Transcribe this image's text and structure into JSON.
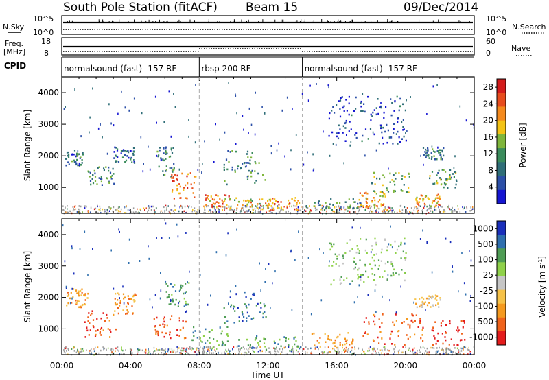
{
  "header": {
    "station": "South Pole Station (fitACF)",
    "beam": "Beam 15",
    "date": "09/Dec/2014"
  },
  "labels": {
    "nsky": "N.Sky",
    "freq": "Freq.",
    "freq_unit": "[MHz]",
    "cpid": "CPID",
    "nsearch": "N.Search",
    "nave": "Nave",
    "nsky_tick_high": "10^5",
    "nsky_tick_low": "10^0",
    "freq_tick_high": "18",
    "freq_tick_low": "8",
    "nave_tick_high": "60",
    "nave_tick_low": "0"
  },
  "cpid_segments": [
    {
      "label": "normalsound (fast) -157 RF",
      "start_hour": 0,
      "end_hour": 8
    },
    {
      "label": "rbsp 200 RF",
      "start_hour": 8,
      "end_hour": 14
    },
    {
      "label": "normalsound (fast) -157 RF",
      "start_hour": 14,
      "end_hour": 24
    }
  ],
  "colors": {
    "power": [
      "#1515d2",
      "#2c50a8",
      "#2f6e78",
      "#3b8c5c",
      "#7fb63c",
      "#f3c315",
      "#f58a1d",
      "#e74c1d",
      "#d41c1c"
    ],
    "velocity": [
      "#e41c1c",
      "#f0631b",
      "#f59a1f",
      "#f6c248",
      "#c6c6c6",
      "#8fd14a",
      "#4f9d55",
      "#2f6fae",
      "#1a2fbb"
    ],
    "ground_scatter": "#9a9a9a"
  },
  "chart_data": [
    {
      "type": "heatmap",
      "name": "power",
      "ylabel": "Slant Range [km]",
      "xlabel": "",
      "xlim": [
        0,
        24
      ],
      "ylim": [
        180,
        4500
      ],
      "yticks": [
        "1000",
        "2000",
        "3000",
        "4000"
      ],
      "xticks": [
        "00:00",
        "04:00",
        "08:00",
        "12:00",
        "16:00",
        "20:00",
        "00:00"
      ],
      "colorbar_label": "Power [dB]",
      "colorbar_ticks": [
        "28",
        "24",
        "20",
        "16",
        "12",
        "8",
        "4"
      ],
      "colorbar_range": [
        0,
        30
      ],
      "mode_boundaries_hours": [
        8,
        14
      ],
      "echo_regions": [
        {
          "t0": 0.2,
          "t1": 1.2,
          "r0": 1700,
          "r1": 2200,
          "level": 8
        },
        {
          "t0": 1.4,
          "t1": 3.0,
          "r0": 1100,
          "r1": 1700,
          "level": 10
        },
        {
          "t0": 3.0,
          "t1": 4.2,
          "r0": 1800,
          "r1": 2300,
          "level": 7
        },
        {
          "t0": 5.5,
          "t1": 6.5,
          "r0": 1300,
          "r1": 2300,
          "level": 9
        },
        {
          "t0": 6.3,
          "t1": 7.8,
          "r0": 600,
          "r1": 1500,
          "level": 22
        },
        {
          "t0": 8.3,
          "t1": 9.8,
          "r0": 350,
          "r1": 800,
          "level": 22
        },
        {
          "t0": 9.4,
          "t1": 11.8,
          "r0": 1100,
          "r1": 2200,
          "level": 10
        },
        {
          "t0": 10.0,
          "t1": 12.0,
          "r0": 300,
          "r1": 700,
          "level": 18
        },
        {
          "t0": 12.0,
          "t1": 13.8,
          "r0": 300,
          "r1": 700,
          "level": 22
        },
        {
          "t0": 14.5,
          "t1": 17.5,
          "r0": 300,
          "r1": 700,
          "level": 10
        },
        {
          "t0": 17.2,
          "t1": 18.8,
          "r0": 400,
          "r1": 900,
          "level": 20
        },
        {
          "t0": 18.0,
          "t1": 20.2,
          "r0": 800,
          "r1": 1500,
          "level": 14
        },
        {
          "t0": 20.5,
          "t1": 22.0,
          "r0": 400,
          "r1": 800,
          "level": 20
        },
        {
          "t0": 21.3,
          "t1": 23.0,
          "r0": 1000,
          "r1": 1600,
          "level": 12
        },
        {
          "t0": 21.0,
          "t1": 22.2,
          "r0": 1900,
          "r1": 2300,
          "level": 9
        },
        {
          "t0": 15.5,
          "t1": 20.0,
          "r0": 2400,
          "r1": 3900,
          "level": 5
        }
      ]
    },
    {
      "type": "heatmap",
      "name": "velocity",
      "ylabel": "Slant Range [km]",
      "xlabel": "Time UT",
      "xlim": [
        0,
        24
      ],
      "ylim": [
        180,
        4500
      ],
      "yticks": [
        "1000",
        "2000",
        "3000",
        "4000"
      ],
      "xticks": [
        "00:00",
        "04:00",
        "08:00",
        "12:00",
        "16:00",
        "20:00",
        "00:00"
      ],
      "colorbar_label": "Velocity [m s",
      "colorbar_label_superscript": "-1",
      "colorbar_label_close": "]",
      "colorbar_ticks": [
        "1000",
        "500",
        "100",
        "25",
        "-25",
        "-100",
        "-500",
        "-1000"
      ],
      "mode_boundaries_hours": [
        8,
        14
      ],
      "echo_regions": [
        {
          "t0": 0.2,
          "t1": 1.5,
          "r0": 1700,
          "r1": 2300,
          "level": 2
        },
        {
          "t0": 1.3,
          "t1": 3.3,
          "r0": 700,
          "r1": 1600,
          "level": 1
        },
        {
          "t0": 3.0,
          "t1": 4.3,
          "r0": 1500,
          "r1": 2200,
          "level": 2
        },
        {
          "t0": 5.3,
          "t1": 7.2,
          "r0": 700,
          "r1": 1500,
          "level": 1
        },
        {
          "t0": 6.0,
          "t1": 7.4,
          "r0": 1700,
          "r1": 2500,
          "level": 6
        },
        {
          "t0": 7.5,
          "t1": 9.8,
          "r0": 300,
          "r1": 1100,
          "level": 6
        },
        {
          "t0": 9.4,
          "t1": 11.9,
          "r0": 1200,
          "r1": 2200,
          "level": 7
        },
        {
          "t0": 10.2,
          "t1": 13.9,
          "r0": 300,
          "r1": 800,
          "level": 6
        },
        {
          "t0": 14.5,
          "t1": 17.0,
          "r0": 300,
          "r1": 900,
          "level": 2
        },
        {
          "t0": 17.5,
          "t1": 21.0,
          "r0": 500,
          "r1": 1500,
          "level": 1
        },
        {
          "t0": 20.5,
          "t1": 22.0,
          "r0": 1700,
          "r1": 2100,
          "level": 3
        },
        {
          "t0": 21.5,
          "t1": 23.5,
          "r0": 500,
          "r1": 1300,
          "level": 0
        },
        {
          "t0": 15.5,
          "t1": 20.0,
          "r0": 2400,
          "r1": 3900,
          "level": 5
        }
      ]
    }
  ]
}
